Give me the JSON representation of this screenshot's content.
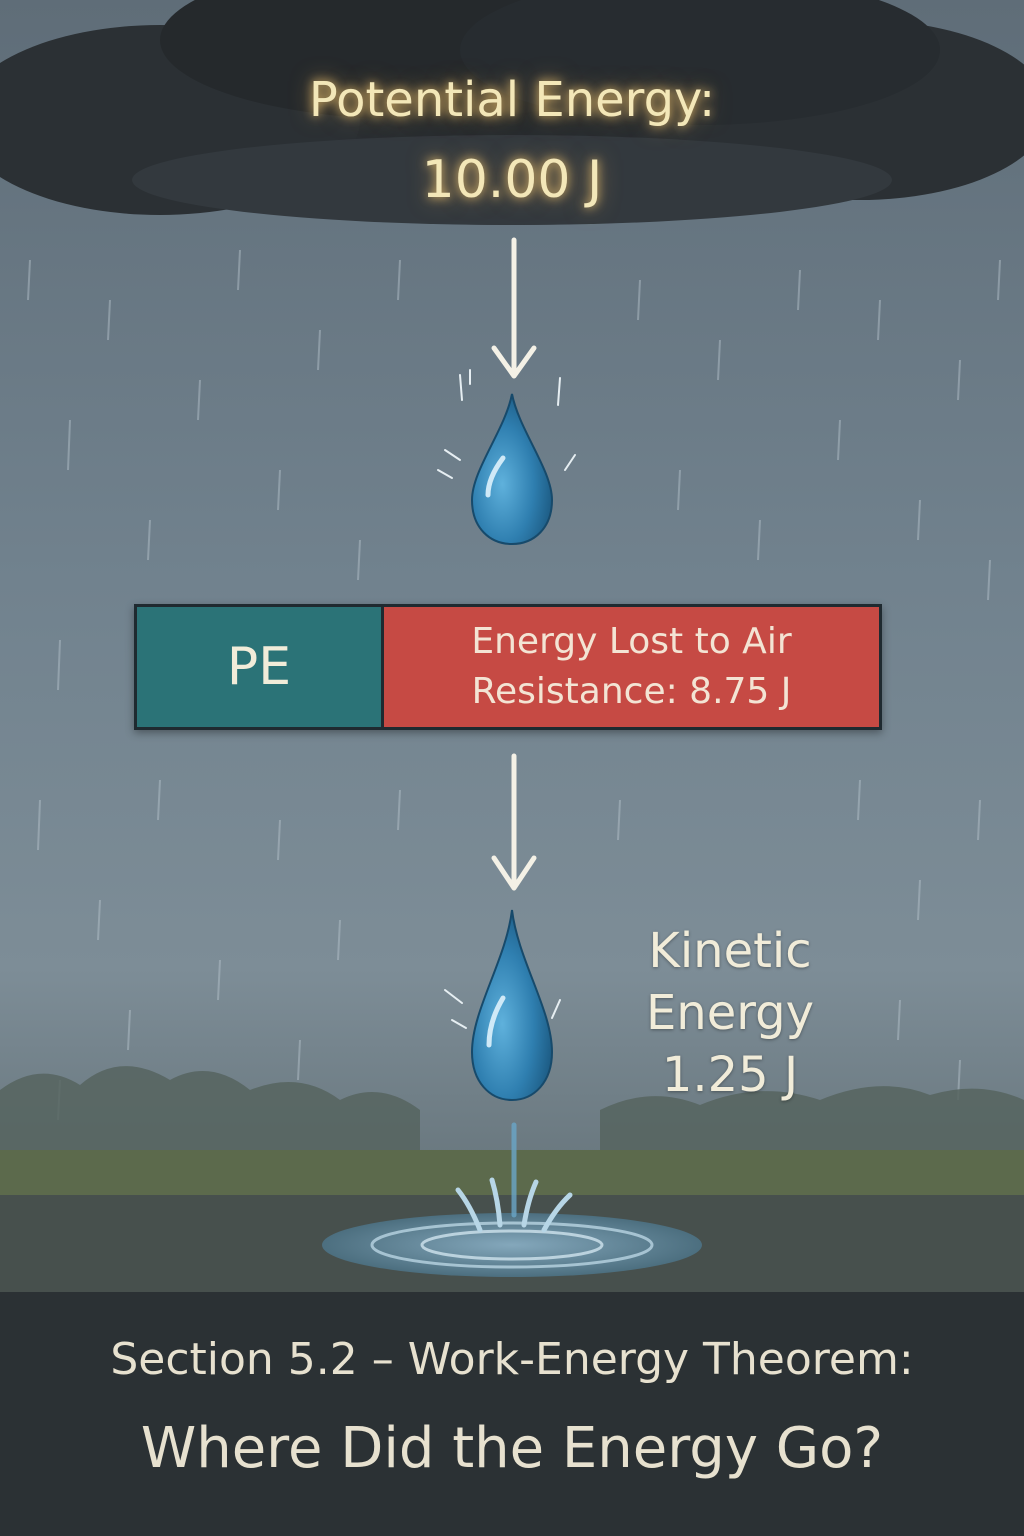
{
  "potential_energy": {
    "label": "Potential Energy:",
    "value": "10.00 J"
  },
  "energy_bar": {
    "pe_label": "PE",
    "loss_line1": "Energy Lost to Air",
    "loss_line2": "Resistance: 8.75 J",
    "pe_color": "#2b7377",
    "loss_color": "#c64a44"
  },
  "kinetic_energy": {
    "line1": "Kinetic",
    "line2": "Energy",
    "value": "1.25 J"
  },
  "caption": {
    "line1": "Section 5.2 – Work-Energy Theorem:",
    "line2": "Where Did the Energy Go?"
  },
  "colors": {
    "sky": "#6f7f8c",
    "cloud": "#2a2f33",
    "drop": "#2f7fb0",
    "caption_bg": "#2b3134"
  }
}
